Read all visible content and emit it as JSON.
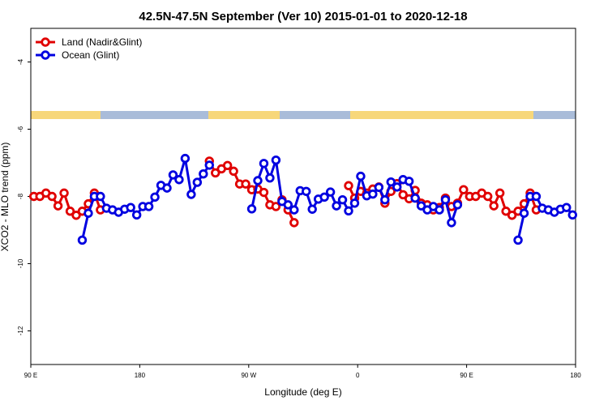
{
  "chart_data": {
    "type": "line",
    "title": "42.5N-47.5N September (Ver 10)   2015-01-01 to 2020-12-18",
    "xlabel": "Longitude (deg E)",
    "ylabel": "XCO2 - MLO trend (ppm)",
    "xlim": [
      90,
      540
    ],
    "xticks": [
      {
        "value": 90,
        "label": "90 E"
      },
      180,
      {
        "value": 270,
        "label": "90 W"
      },
      {
        "value": 360,
        "label": "0"
      },
      {
        "value": 450,
        "label": "90 E"
      },
      {
        "value": 540,
        "label": "180"
      }
    ],
    "ylim": [
      -13,
      -3
    ],
    "yticks": [
      -12,
      -10,
      -8,
      -6,
      -4
    ],
    "legend": "top-left",
    "series": [
      {
        "name": "Land (Nadir&Glint)",
        "color": "#e00000",
        "x": [
          92.5,
          97.5,
          102.5,
          107.5,
          112.5,
          117.5,
          122.5,
          127.5,
          132.5,
          137.5,
          142.5,
          147.5,
          190,
          237.5,
          242.5,
          247.5,
          252.5,
          257.5,
          262.5,
          267.5,
          272.5,
          277.5,
          282.5,
          287.5,
          292.5,
          297.5,
          302.5,
          307.5,
          330,
          352.5,
          357.5,
          362.5,
          367.5,
          372.5,
          377.5,
          382.5,
          387.5,
          392.5,
          397.5,
          402.5,
          407.5,
          412.5,
          417.5,
          422.5,
          427.5,
          432.5,
          437.5,
          442.5,
          447.5,
          452.5,
          457.5,
          462.5,
          467.5,
          472.5,
          477.5,
          482.5,
          487.5,
          492.5,
          497.5,
          502.5,
          507.5
        ],
        "values": [
          -8.0,
          -8.0,
          -7.9,
          -8.0,
          -8.28,
          -7.9,
          -8.44,
          -8.56,
          -8.44,
          -8.22,
          -7.9,
          -8.4,
          null,
          -6.95,
          -7.3,
          -7.18,
          -7.08,
          -7.25,
          -7.63,
          -7.63,
          -7.8,
          -7.78,
          -7.88,
          -8.25,
          -8.3,
          -8.1,
          -8.4,
          -8.78,
          null,
          -7.68,
          -8.05,
          -7.85,
          -7.9,
          -7.78,
          -7.72,
          -8.2,
          -7.85,
          -7.62,
          -7.95,
          -8.07,
          -7.82,
          -8.2,
          -8.25,
          -8.4,
          -8.33,
          -8.05,
          -8.3,
          -8.2,
          -7.8,
          -8.0,
          -8.0,
          -7.9,
          -8.0,
          -8.28,
          -7.9,
          -8.44,
          -8.56,
          -8.44,
          -8.22,
          -7.9,
          -8.4
        ]
      },
      {
        "name": "Ocean (Glint)",
        "color": "#0000e0",
        "x": [
          132.5,
          137.5,
          142.5,
          147.5,
          152.5,
          157.5,
          162.5,
          167.5,
          172.5,
          177.5,
          182.5,
          187.5,
          192.5,
          197.5,
          202.5,
          207.5,
          212.5,
          217.5,
          222.5,
          227.5,
          232.5,
          237.5,
          255,
          272.5,
          277.5,
          282.5,
          287.5,
          292.5,
          297.5,
          302.5,
          307.5,
          312.5,
          317.5,
          322.5,
          327.5,
          332.5,
          337.5,
          342.5,
          347.5,
          352.5,
          357.5,
          362.5,
          367.5,
          372.5,
          377.5,
          382.5,
          387.5,
          392.5,
          397.5,
          402.5,
          407.5,
          412.5,
          417.5,
          422.5,
          427.5,
          432.5,
          437.5,
          442.5,
          467.5,
          492.5,
          497.5,
          502.5,
          507.5,
          512.5,
          517.5,
          522.5,
          527.5,
          532.5,
          537.5
        ],
        "values": [
          -9.3,
          -8.5,
          -8.0,
          -8.0,
          -8.35,
          -8.4,
          -8.47,
          -8.38,
          -8.33,
          -8.55,
          -8.3,
          -8.3,
          -8.02,
          -7.67,
          -7.75,
          -7.36,
          -7.5,
          -6.87,
          -7.94,
          -7.58,
          -7.33,
          -7.07,
          null,
          -8.37,
          -7.53,
          -7.02,
          -7.45,
          -6.92,
          -8.15,
          -8.25,
          -8.4,
          -7.83,
          -7.85,
          -8.38,
          -8.08,
          -8.02,
          -7.87,
          -8.28,
          -8.1,
          -8.43,
          -8.2,
          -7.4,
          -7.98,
          -7.93,
          -7.73,
          -8.1,
          -7.57,
          -7.72,
          -7.5,
          -7.55,
          -8.05,
          -8.28,
          -8.4,
          -8.3,
          -8.4,
          -8.1,
          -8.78,
          -8.25,
          null,
          -9.3,
          -8.5,
          -8.0,
          -8.0,
          -8.35,
          -8.4,
          -8.47,
          -8.38,
          -8.33,
          -8.55
        ]
      }
    ]
  }
}
